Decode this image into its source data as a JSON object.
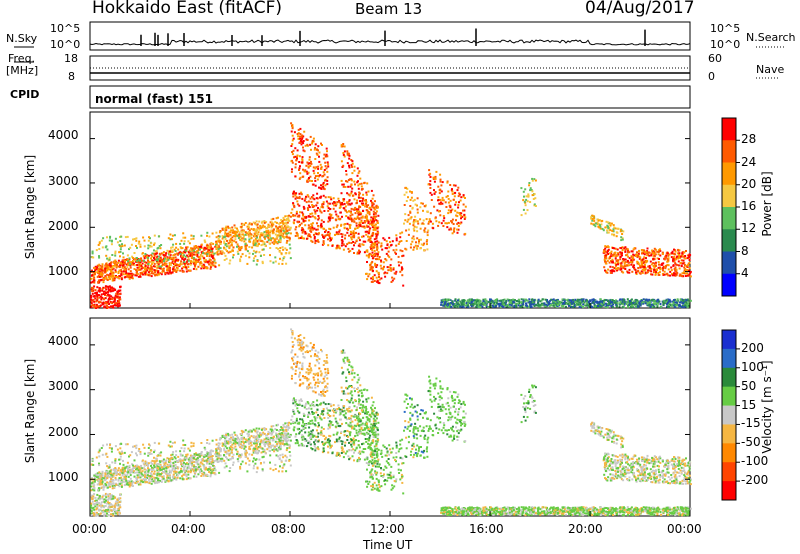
{
  "header": {
    "station": "Hokkaido East (fitACF)",
    "beam": "Beam 13",
    "date": "04/Aug/2017"
  },
  "noise_panel": {
    "left_label": "N.Sky",
    "right_label": "N.Search",
    "left_ticks": [
      "10^5",
      "10^0"
    ],
    "right_ticks": [
      "10^5",
      "10^0"
    ]
  },
  "freq_panel": {
    "left_label_1": "Freq.",
    "left_label_2": "[MHz]",
    "right_label": "Nave",
    "left_ticks": [
      "18",
      "8"
    ],
    "right_ticks": [
      "60",
      "0"
    ]
  },
  "cpid_panel": {
    "label": "CPID",
    "value": "normal (fast) 151"
  },
  "power_panel": {
    "ylabel": "Slant Range [km]",
    "yticks": [
      "4000",
      "3000",
      "2000",
      "1000"
    ],
    "colorbar_label": "Power [dB]",
    "colorbar_ticks": [
      "28",
      "24",
      "20",
      "16",
      "12",
      "8",
      "4"
    ],
    "colors": [
      "#0000ff",
      "#1f4faa",
      "#2a8a4e",
      "#5ec05e",
      "#f5c842",
      "#ff9900",
      "#ff5a00",
      "#ff0000"
    ]
  },
  "velocity_panel": {
    "ylabel": "Slant Range [km]",
    "yticks": [
      "4000",
      "3000",
      "2000",
      "1000"
    ],
    "colorbar_label": "Velocity [m s⁻¹]",
    "colorbar_ticks": [
      "200",
      "100",
      "50",
      "15",
      "-15",
      "-50",
      "-100",
      "-200"
    ],
    "colors": [
      "#1a2fd0",
      "#2a6cc8",
      "#2a8a3a",
      "#66cc44",
      "#c8c8c8",
      "#f5b642",
      "#ff8800",
      "#ff4400",
      "#ff0000"
    ]
  },
  "xaxis": {
    "label": "Time UT",
    "ticks": [
      "00:00",
      "04:00",
      "08:00",
      "12:00",
      "16:00",
      "20:00",
      "00:00"
    ]
  },
  "chart_data": {
    "type": "heatmap",
    "xlabel": "Time UT",
    "ylabel": "Slant Range [km]",
    "xlim_hours": [
      0,
      24
    ],
    "ylim_km": [
      180,
      4600
    ],
    "power_scale_db": [
      0,
      32
    ],
    "velocity_scale_ms": [
      -250,
      250
    ]
  }
}
